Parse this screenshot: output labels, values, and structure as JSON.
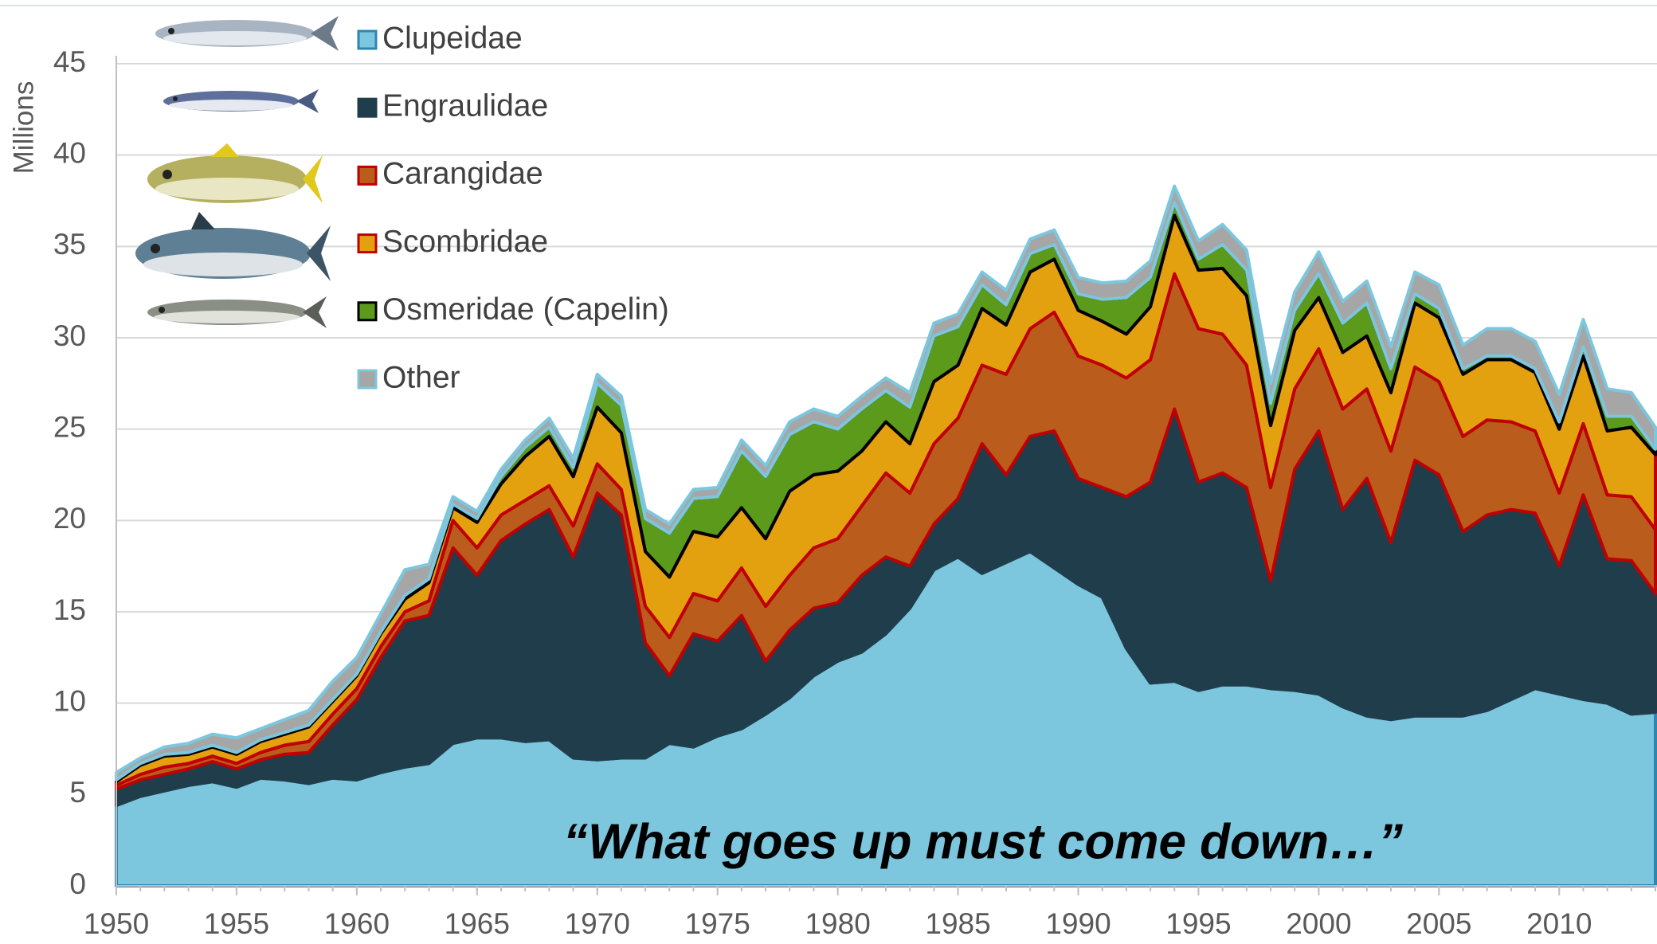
{
  "chart_data": {
    "type": "stacked-area",
    "y_label": "Millions",
    "annotation": "“What goes up must come down…”",
    "x": [
      1950,
      1951,
      1952,
      1953,
      1954,
      1955,
      1956,
      1957,
      1958,
      1959,
      1960,
      1961,
      1962,
      1963,
      1964,
      1965,
      1966,
      1967,
      1968,
      1969,
      1970,
      1971,
      1972,
      1973,
      1974,
      1975,
      1976,
      1977,
      1978,
      1979,
      1980,
      1981,
      1982,
      1983,
      1984,
      1985,
      1986,
      1987,
      1988,
      1989,
      1990,
      1991,
      1992,
      1993,
      1994,
      1995,
      1996,
      1997,
      1998,
      1999,
      2000,
      2001,
      2002,
      2003,
      2004,
      2005,
      2006,
      2007,
      2008,
      2009,
      2010,
      2011,
      2012,
      2013,
      2014
    ],
    "xlim": [
      1950,
      2014
    ],
    "xticks": [
      1950,
      1955,
      1960,
      1965,
      1970,
      1975,
      1980,
      1985,
      1990,
      1995,
      2000,
      2005,
      2010
    ],
    "ylim": [
      0,
      45
    ],
    "yticks": [
      0,
      5,
      10,
      15,
      20,
      25,
      30,
      35,
      40,
      45
    ],
    "grid": true,
    "series": [
      {
        "name": "Clupeidae",
        "color": "#7cc6de",
        "border": "#2e86b0",
        "values": [
          4.4,
          4.9,
          5.2,
          5.5,
          5.7,
          5.4,
          5.9,
          5.8,
          5.6,
          5.9,
          5.8,
          6.2,
          6.5,
          6.7,
          7.8,
          8.1,
          8.1,
          7.9,
          8.0,
          7.0,
          6.9,
          7.0,
          7.0,
          7.8,
          7.6,
          8.2,
          8.6,
          9.4,
          10.3,
          11.5,
          12.3,
          12.8,
          13.8,
          15.2,
          17.3,
          18.0,
          17.1,
          17.7,
          18.3,
          17.4,
          16.5,
          15.8,
          13.0,
          11.1,
          11.2,
          10.7,
          11.0,
          11.0,
          10.8,
          10.7,
          10.5,
          9.8,
          9.3,
          9.1,
          9.3,
          9.3,
          9.3,
          9.6,
          10.2,
          10.8,
          10.5,
          10.2,
          10.0,
          9.4,
          9.5
        ]
      },
      {
        "name": "Engraulidae",
        "color": "#203d4b",
        "border": "#203d4b",
        "values": [
          0.9,
          0.9,
          0.9,
          0.9,
          1.1,
          1.0,
          1.0,
          1.4,
          1.7,
          2.9,
          4.4,
          6.3,
          8.0,
          8.1,
          10.7,
          8.9,
          10.8,
          11.9,
          12.6,
          11.0,
          14.6,
          13.3,
          6.3,
          3.7,
          6.2,
          5.2,
          6.2,
          2.9,
          3.7,
          3.7,
          3.2,
          4.2,
          4.2,
          2.3,
          2.5,
          3.2,
          7.1,
          4.8,
          6.3,
          7.5,
          5.8,
          6.0,
          8.3,
          11.0,
          14.9,
          11.4,
          11.6,
          10.8,
          5.9,
          12.1,
          14.4,
          10.8,
          13.0,
          9.7,
          14.0,
          13.2,
          10.1,
          10.7,
          10.4,
          9.6,
          7.0,
          11.2,
          7.9,
          8.4,
          6.5
        ]
      },
      {
        "name": "Carangidae",
        "color": "#b95c1c",
        "border": "#c00000",
        "values": [
          0.2,
          0.3,
          0.4,
          0.3,
          0.3,
          0.3,
          0.4,
          0.5,
          0.6,
          0.6,
          0.6,
          0.6,
          0.5,
          0.8,
          1.5,
          1.5,
          1.4,
          1.3,
          1.3,
          1.7,
          1.6,
          1.4,
          2.0,
          2.1,
          2.2,
          2.2,
          2.6,
          3.0,
          3.0,
          3.3,
          3.5,
          3.8,
          4.6,
          4.0,
          4.4,
          4.4,
          4.3,
          5.5,
          5.9,
          6.5,
          6.7,
          6.7,
          6.5,
          6.7,
          7.4,
          8.4,
          7.6,
          6.7,
          5.1,
          4.4,
          4.5,
          5.5,
          4.9,
          5.0,
          5.1,
          5.1,
          5.2,
          5.2,
          4.8,
          4.5,
          4.0,
          3.9,
          3.5,
          3.5,
          3.5
        ]
      },
      {
        "name": "Scombridae",
        "color": "#e3a00f",
        "border": "#c00000",
        "values": [
          0.2,
          0.5,
          0.6,
          0.5,
          0.5,
          0.5,
          0.6,
          0.6,
          0.8,
          0.7,
          0.7,
          0.7,
          0.7,
          1.0,
          0.7,
          1.4,
          1.7,
          2.4,
          2.7,
          2.7,
          3.1,
          3.1,
          3.0,
          3.3,
          3.4,
          3.5,
          3.3,
          3.7,
          4.6,
          4.0,
          3.7,
          3.0,
          2.8,
          2.7,
          3.4,
          2.9,
          3.1,
          2.7,
          3.1,
          2.9,
          2.5,
          2.4,
          2.4,
          2.9,
          3.2,
          3.2,
          3.6,
          3.8,
          3.4,
          3.2,
          2.8,
          3.1,
          2.9,
          3.2,
          3.5,
          3.5,
          3.4,
          3.3,
          3.4,
          3.2,
          3.5,
          3.7,
          3.5,
          3.8,
          4.1
        ]
      },
      {
        "name": "Osmeridae (Capelin)",
        "color": "#5c9a1b",
        "border": "#000000",
        "values": [
          0.1,
          0.1,
          0.1,
          0.1,
          0.1,
          0.1,
          0.1,
          0.1,
          0.1,
          0.1,
          0.1,
          0.1,
          0.2,
          0.2,
          0.2,
          0.2,
          0.4,
          0.5,
          0.5,
          0.5,
          1.3,
          1.5,
          1.8,
          2.4,
          1.8,
          2.2,
          3.1,
          3.4,
          3.1,
          2.9,
          2.3,
          2.3,
          1.7,
          2.0,
          2.5,
          2.1,
          1.3,
          1.1,
          1.0,
          0.8,
          0.9,
          1.2,
          2.0,
          1.6,
          0.7,
          0.6,
          1.3,
          1.4,
          1.2,
          1.1,
          1.3,
          1.6,
          1.8,
          1.3,
          0.5,
          0.5,
          0.3,
          0.2,
          0.2,
          0.2,
          0.4,
          0.5,
          0.8,
          0.6,
          0.3
        ]
      },
      {
        "name": "Other",
        "color": "#a6a6a6",
        "border": "#7cc6de",
        "values": [
          0.4,
          0.3,
          0.4,
          0.5,
          0.6,
          0.8,
          0.6,
          0.7,
          0.8,
          1.0,
          0.9,
          1.0,
          1.4,
          0.8,
          0.4,
          0.4,
          0.4,
          0.4,
          0.5,
          0.5,
          0.5,
          0.5,
          0.5,
          0.5,
          0.5,
          0.5,
          0.6,
          0.6,
          0.7,
          0.7,
          0.7,
          0.7,
          0.7,
          0.8,
          0.7,
          0.7,
          0.7,
          0.8,
          0.8,
          0.8,
          0.9,
          0.9,
          0.9,
          0.9,
          0.9,
          1.0,
          1.1,
          1.1,
          1.1,
          1.0,
          1.2,
          1.2,
          1.2,
          1.2,
          1.2,
          1.3,
          1.3,
          1.5,
          1.5,
          1.5,
          1.5,
          1.5,
          1.5,
          1.3,
          1.2
        ]
      }
    ]
  }
}
